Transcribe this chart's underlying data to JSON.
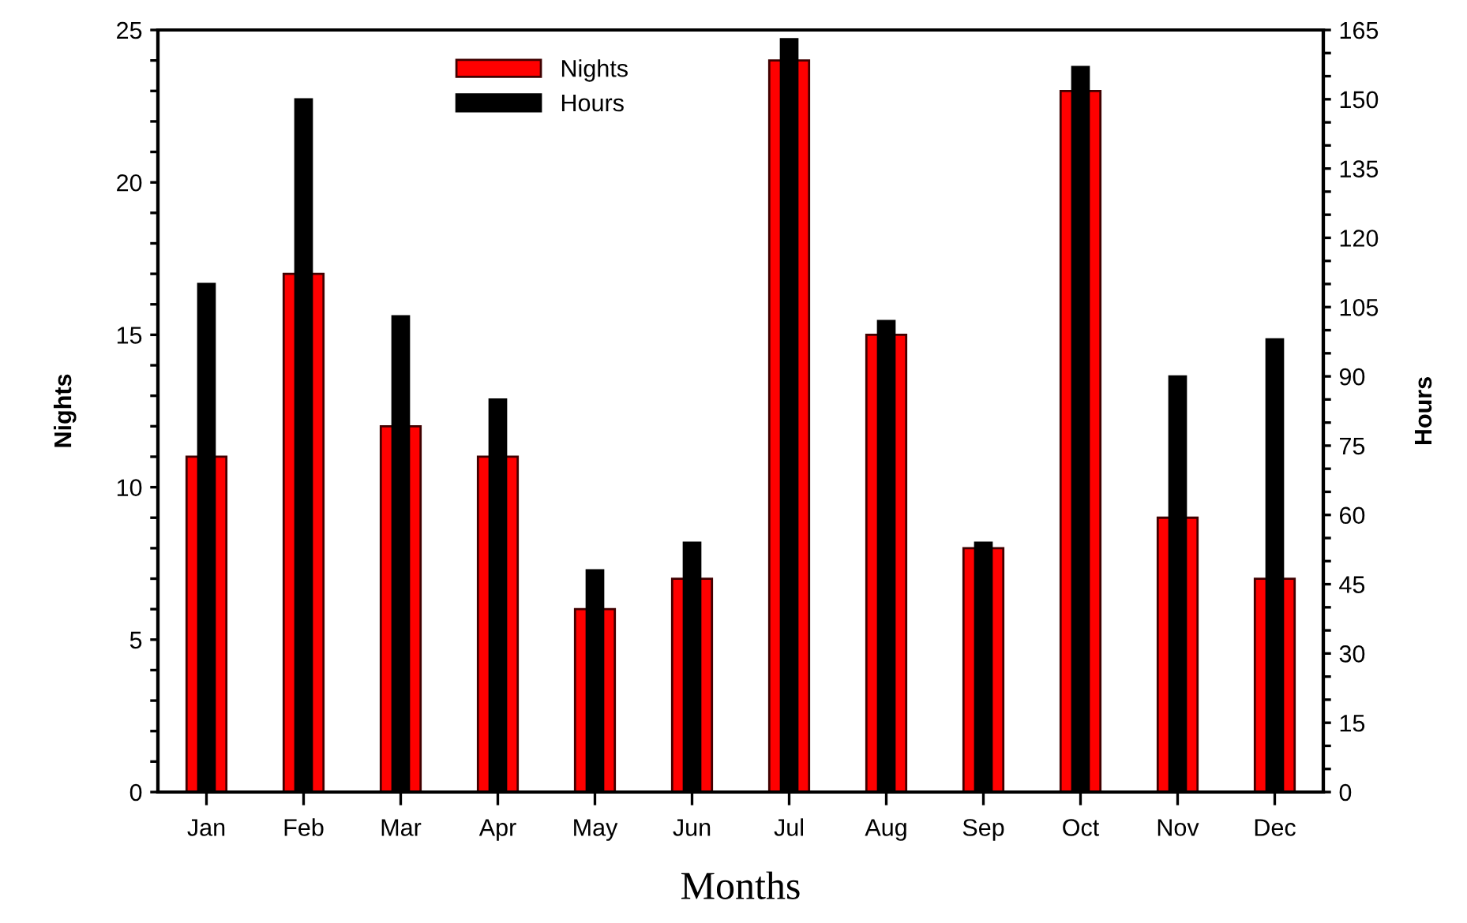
{
  "chart_data": {
    "type": "bar",
    "categories": [
      "Jan",
      "Feb",
      "Mar",
      "Apr",
      "May",
      "Jun",
      "Jul",
      "Aug",
      "Sep",
      "Oct",
      "Nov",
      "Dec"
    ],
    "series": [
      {
        "name": "Nights",
        "color": "#ff0000",
        "values": [
          11,
          17,
          12,
          11,
          6,
          7,
          24,
          15,
          8,
          23,
          9,
          7
        ]
      },
      {
        "name": "Hours",
        "color": "#000000",
        "axis": "y2",
        "values": [
          110,
          150,
          103,
          85,
          48,
          54,
          163,
          102,
          54,
          157,
          90,
          98
        ]
      }
    ],
    "xlabel": "Months",
    "ylabel": "Nights",
    "y2label": "Hours",
    "ylim": [
      0,
      25
    ],
    "yticks": [
      0,
      {
        "value": 1,
        "label": null
      },
      {
        "value": 2,
        "label": null
      },
      {
        "value": 3,
        "label": null
      },
      {
        "value": 4,
        "label": null
      },
      5,
      {
        "value": 6,
        "label": null
      },
      {
        "value": 7,
        "label": null
      },
      {
        "value": 8,
        "label": null
      },
      {
        "value": 9,
        "label": null
      },
      10,
      {
        "value": 11,
        "label": null
      },
      {
        "value": 12,
        "label": null
      },
      {
        "value": 13,
        "label": null
      },
      {
        "value": 14,
        "label": null
      },
      15,
      {
        "value": 16,
        "label": null
      },
      {
        "value": 17,
        "label": null
      },
      {
        "value": 18,
        "label": null
      },
      {
        "value": 19,
        "label": null
      },
      20,
      {
        "value": 21,
        "label": null
      },
      {
        "value": 22,
        "label": null
      },
      {
        "value": 23,
        "label": null
      },
      {
        "value": 24,
        "label": null
      },
      25
    ],
    "y2lim": [
      0,
      165
    ],
    "y2ticks": [
      0,
      {
        "value": 5,
        "label": null
      },
      {
        "value": 10,
        "label": null
      },
      15,
      {
        "value": 20,
        "label": null
      },
      {
        "value": 25,
        "label": null
      },
      30,
      {
        "value": 35,
        "label": null
      },
      {
        "value": 40,
        "label": null
      },
      45,
      {
        "value": 50,
        "label": null
      },
      {
        "value": 55,
        "label": null
      },
      60,
      {
        "value": 65,
        "label": null
      },
      {
        "value": 70,
        "label": null
      },
      75,
      {
        "value": 80,
        "label": null
      },
      {
        "value": 85,
        "label": null
      },
      90,
      {
        "value": 95,
        "label": null
      },
      {
        "value": 100,
        "label": null
      },
      105,
      {
        "value": 110,
        "label": null
      },
      {
        "value": 115,
        "label": null
      },
      120,
      {
        "value": 125,
        "label": null
      },
      {
        "value": 130,
        "label": null
      },
      135,
      {
        "value": 140,
        "label": null
      },
      {
        "value": 145,
        "label": null
      },
      150,
      {
        "value": 155,
        "label": null
      },
      {
        "value": 160,
        "label": null
      },
      165
    ],
    "grid": false,
    "legend": "top"
  }
}
